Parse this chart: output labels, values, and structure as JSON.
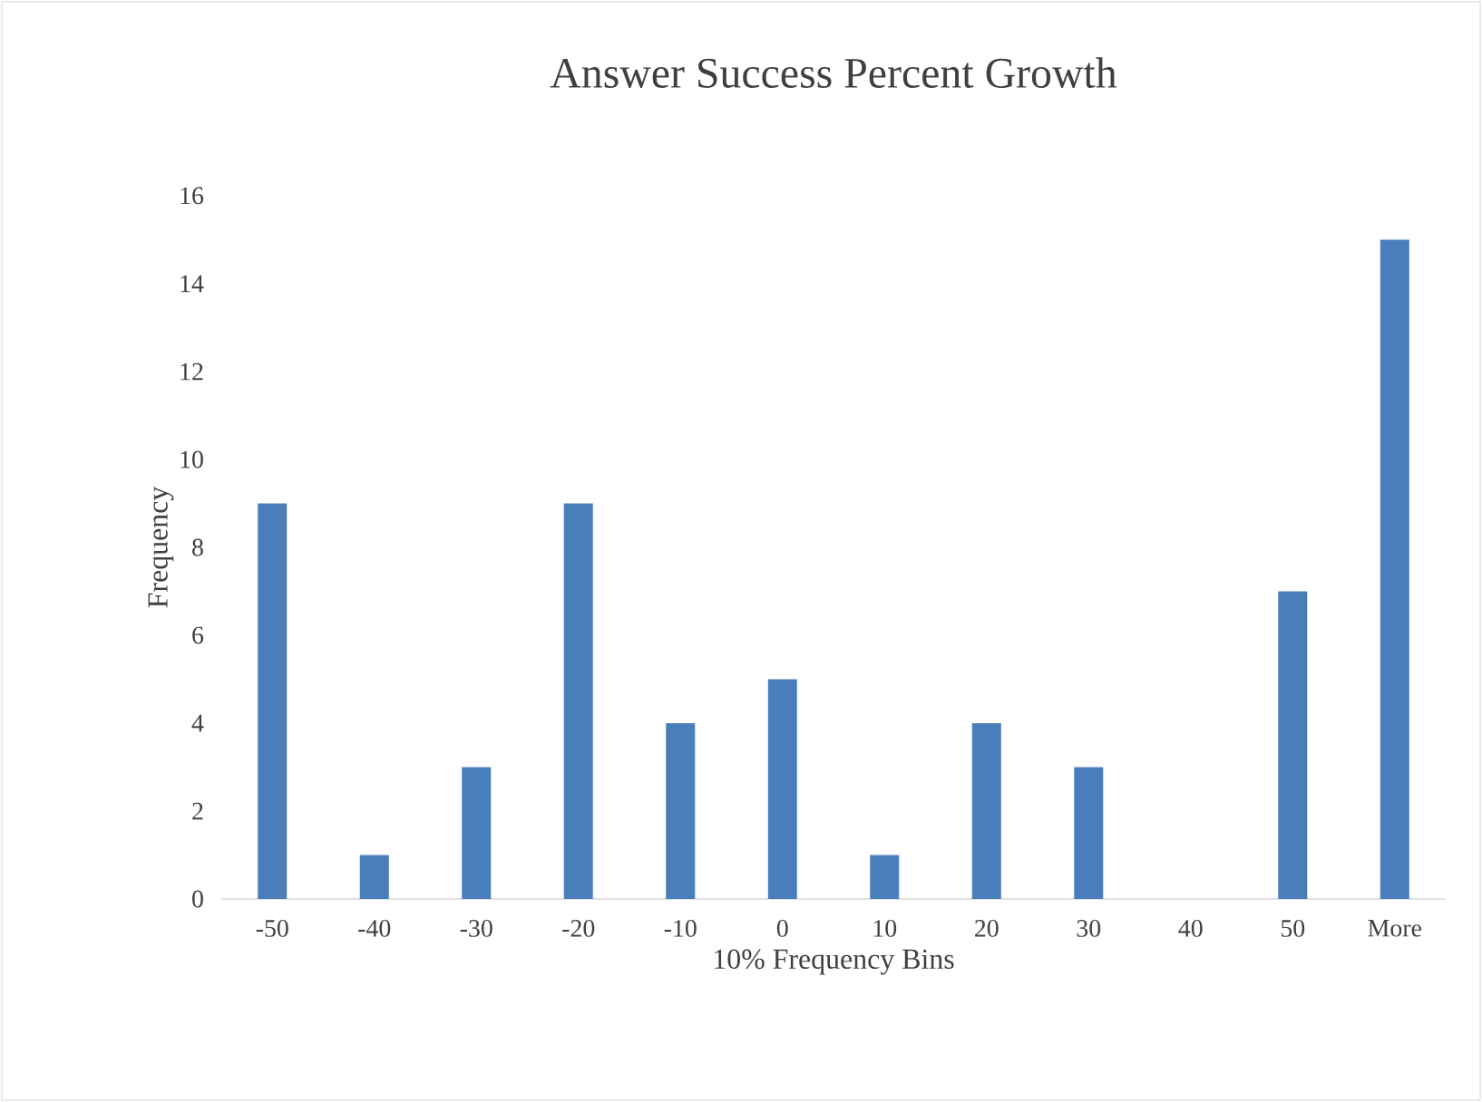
{
  "chart_data": {
    "type": "bar",
    "title": "Answer Success Percent Growth",
    "xlabel": "10% Frequency Bins",
    "ylabel": "Frequency",
    "categories": [
      "-50",
      "-40",
      "-30",
      "-20",
      "-10",
      "0",
      "10",
      "20",
      "30",
      "40",
      "50",
      "More"
    ],
    "values": [
      9,
      1,
      3,
      9,
      4,
      5,
      1,
      4,
      3,
      0,
      7,
      15
    ],
    "color": "#4a7ebb",
    "ylim": [
      0,
      16
    ],
    "yticks": [
      0,
      2,
      4,
      6,
      8,
      10,
      12,
      14,
      16
    ]
  }
}
